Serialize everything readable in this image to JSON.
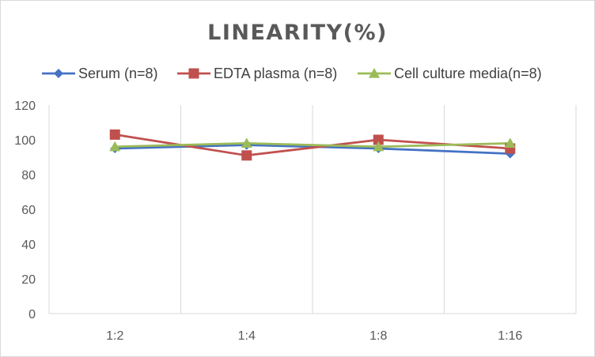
{
  "chart_data": {
    "type": "line",
    "title": "LINEARITY(%)",
    "xlabel": "",
    "ylabel": "",
    "categories": [
      "1:2",
      "1:4",
      "1:8",
      "1:16"
    ],
    "ylim": [
      0,
      120
    ],
    "yticks": [
      0,
      20,
      40,
      60,
      80,
      100,
      120
    ],
    "grid": "vertical",
    "legend_position": "top",
    "series": [
      {
        "name": "Serum (n=8)",
        "values": [
          95,
          97,
          95,
          92
        ],
        "color": "#4472c4",
        "marker": "diamond"
      },
      {
        "name": "EDTA plasma (n=8)",
        "values": [
          103,
          91,
          100,
          95
        ],
        "color": "#c0504d",
        "marker": "square"
      },
      {
        "name": "Cell culture media(n=8)",
        "values": [
          96,
          98,
          96,
          98
        ],
        "color": "#9bbb59",
        "marker": "triangle"
      }
    ]
  }
}
